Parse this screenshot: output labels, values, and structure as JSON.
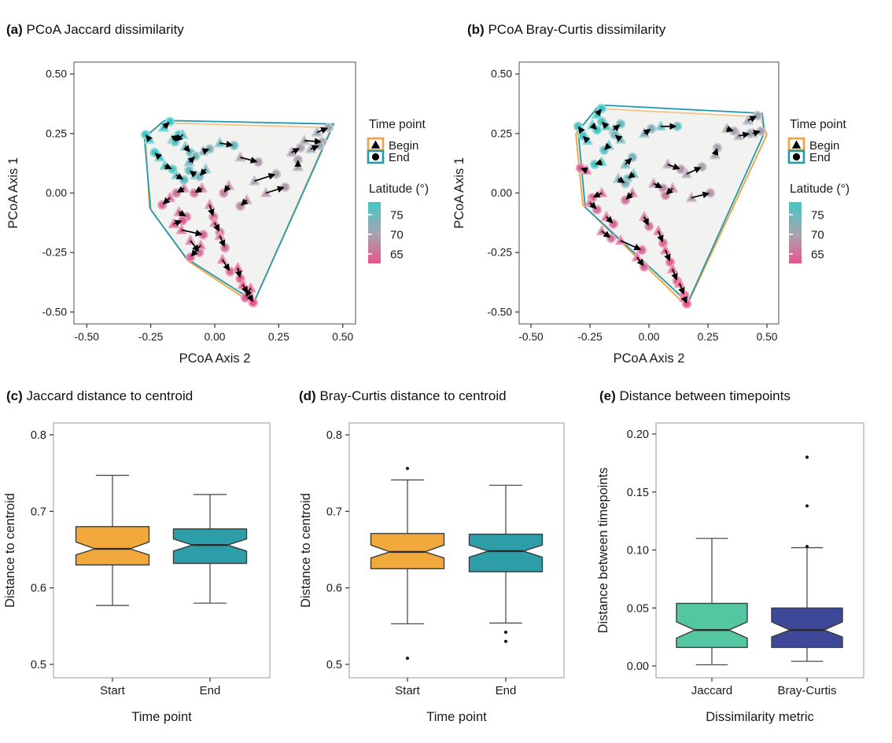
{
  "panels": {
    "a": {
      "tag": "(a)",
      "title": "PCoA Jaccard dissimilarity"
    },
    "b": {
      "tag": "(b)",
      "title": "PCoA Bray-Curtis dissimilarity"
    },
    "c": {
      "tag": "(c)",
      "title": "Jaccard distance to centroid"
    },
    "d": {
      "tag": "(d)",
      "title": "Bray-Curtis distance to centroid"
    },
    "e": {
      "tag": "(e)",
      "title": "Distance between timepoints"
    }
  },
  "legend": {
    "time_point_title": "Time point",
    "begin_label": "Begin",
    "end_label": "End",
    "latitude_title": "Latitude (°)",
    "latitude_ticks": [
      "75",
      "70",
      "65"
    ],
    "begin_color": "#F3A13C",
    "end_color": "#2399AC",
    "latitude_colors": [
      "#41C8C6",
      "#A9A2AF",
      "#E9548C"
    ]
  },
  "colors": {
    "box_start": "#F2A93C",
    "box_end": "#2D9EA8",
    "box_jaccard": "#55C6A2",
    "box_braycurtis": "#3D4899",
    "hull_fill": "#F0F2EF",
    "panel_border_scatter": "#808080",
    "panel_border_box": "#A9A9A9"
  },
  "chart_data": [
    {
      "id": "a",
      "type": "scatter",
      "title": "PCoA Jaccard dissimilarity",
      "xlabel": "PCoA Axis 2",
      "ylabel": "PCoA Axis 1",
      "xlim": [
        -0.55,
        0.55
      ],
      "ylim": [
        -0.55,
        0.55
      ],
      "x_tick_values": [
        -0.5,
        -0.25,
        0.0,
        0.25,
        0.5
      ],
      "x_tick_labels": [
        "-0.50",
        "-0.25",
        "0.00",
        "0.25",
        "0.50"
      ],
      "y_tick_values": [
        0.5,
        0.25,
        0.0,
        -0.25,
        -0.5
      ],
      "y_tick_labels": [
        "0.50",
        "0.25",
        "0.00",
        "-0.25",
        "-0.50"
      ],
      "hull_begin": [
        [
          -0.27,
          0.23
        ],
        [
          -0.21,
          0.295
        ],
        [
          0.455,
          0.275
        ],
        [
          0.15,
          -0.465
        ],
        [
          -0.105,
          -0.285
        ],
        [
          -0.255,
          -0.06
        ]
      ],
      "hull_end": [
        [
          -0.275,
          0.235
        ],
        [
          -0.195,
          0.305
        ],
        [
          0.465,
          0.29
        ],
        [
          0.155,
          -0.455
        ],
        [
          -0.11,
          -0.275
        ],
        [
          -0.25,
          -0.07
        ]
      ],
      "pairs": [
        [
          -0.2,
          0.275,
          -0.175,
          0.3,
          79
        ],
        [
          -0.255,
          0.225,
          -0.27,
          0.245,
          78
        ],
        [
          -0.165,
          0.225,
          -0.14,
          0.245,
          77
        ],
        [
          -0.125,
          0.245,
          -0.155,
          0.215,
          76
        ],
        [
          -0.115,
          0.195,
          -0.095,
          0.17,
          75
        ],
        [
          -0.215,
          0.15,
          -0.235,
          0.17,
          78
        ],
        [
          -0.195,
          0.115,
          -0.165,
          0.1,
          77
        ],
        [
          -0.1,
          0.13,
          -0.075,
          0.155,
          74
        ],
        [
          -0.045,
          0.175,
          -0.02,
          0.185,
          73
        ],
        [
          0.02,
          0.21,
          0.075,
          0.2,
          75
        ],
        [
          -0.15,
          0.075,
          -0.12,
          0.055,
          76
        ],
        [
          -0.075,
          0.075,
          -0.1,
          0.095,
          75
        ],
        [
          -0.035,
          0.1,
          -0.06,
          0.07,
          74
        ],
        [
          0.4,
          0.255,
          0.445,
          0.275,
          71
        ],
        [
          0.35,
          0.22,
          0.42,
          0.215,
          70
        ],
        [
          0.375,
          0.185,
          0.41,
          0.2,
          71
        ],
        [
          0.3,
          0.17,
          0.335,
          0.19,
          70
        ],
        [
          0.325,
          0.11,
          0.325,
          0.14,
          70
        ],
        [
          0.1,
          0.15,
          0.17,
          0.13,
          69
        ],
        [
          0.155,
          0.05,
          0.24,
          0.08,
          70
        ],
        [
          0.2,
          0.0,
          0.275,
          0.025,
          69
        ],
        [
          0.125,
          -0.03,
          0.1,
          -0.055,
          68
        ],
        [
          0.055,
          0.03,
          0.035,
          0.0,
          67
        ],
        [
          -0.12,
          0.02,
          -0.15,
          0.0,
          66
        ],
        [
          -0.175,
          -0.02,
          -0.205,
          -0.05,
          65
        ],
        [
          -0.14,
          -0.08,
          -0.11,
          -0.1,
          66
        ],
        [
          -0.16,
          -0.13,
          -0.125,
          -0.115,
          64
        ],
        [
          -0.13,
          -0.155,
          -0.045,
          -0.175,
          65
        ],
        [
          -0.095,
          -0.2,
          -0.06,
          -0.25,
          66
        ],
        [
          -0.055,
          -0.22,
          -0.095,
          -0.27,
          65
        ],
        [
          -0.02,
          -0.05,
          -0.005,
          -0.1,
          66
        ],
        [
          0.0,
          -0.125,
          0.02,
          -0.165,
          65
        ],
        [
          0.02,
          -0.18,
          0.04,
          -0.23,
          66
        ],
        [
          0.03,
          -0.28,
          0.06,
          -0.33,
          65
        ],
        [
          0.09,
          -0.315,
          0.1,
          -0.36,
          64
        ],
        [
          0.11,
          -0.385,
          0.13,
          -0.425,
          63
        ],
        [
          0.135,
          -0.43,
          0.15,
          -0.46,
          63
        ],
        [
          0.14,
          -0.4,
          0.12,
          -0.44,
          64
        ],
        [
          -0.05,
          0.02,
          -0.08,
          0.0,
          66
        ]
      ]
    },
    {
      "id": "b",
      "type": "scatter",
      "title": "PCoA Bray-Curtis dissimilarity",
      "xlabel": "PCoA Axis 2",
      "ylabel": "PCoA Axis 1",
      "xlim": [
        -0.55,
        0.55
      ],
      "ylim": [
        -0.55,
        0.55
      ],
      "x_tick_values": [
        -0.5,
        -0.25,
        0.0,
        0.25,
        0.5
      ],
      "x_tick_labels": [
        "-0.50",
        "-0.25",
        "0.00",
        "0.25",
        "0.50"
      ],
      "y_tick_values": [
        0.5,
        0.25,
        0.0,
        -0.25,
        -0.5
      ],
      "y_tick_labels": [
        "0.50",
        "0.25",
        "0.00",
        "-0.25",
        "-0.50"
      ],
      "hull_begin": [
        [
          -0.31,
          0.25
        ],
        [
          -0.22,
          0.355
        ],
        [
          0.47,
          0.32
        ],
        [
          0.5,
          0.245
        ],
        [
          0.16,
          -0.475
        ],
        [
          -0.28,
          -0.05
        ]
      ],
      "hull_end": [
        [
          -0.3,
          0.26
        ],
        [
          -0.21,
          0.37
        ],
        [
          0.48,
          0.335
        ],
        [
          0.49,
          0.255
        ],
        [
          0.165,
          -0.46
        ],
        [
          -0.27,
          -0.06
        ]
      ],
      "pairs": [
        [
          -0.22,
          0.33,
          -0.2,
          0.355,
          78
        ],
        [
          -0.285,
          0.26,
          -0.3,
          0.28,
          77
        ],
        [
          -0.24,
          0.285,
          -0.22,
          0.265,
          78
        ],
        [
          -0.18,
          0.28,
          -0.2,
          0.3,
          76
        ],
        [
          -0.15,
          0.265,
          -0.12,
          0.29,
          75
        ],
        [
          -0.26,
          0.22,
          -0.28,
          0.24,
          77
        ],
        [
          -0.17,
          0.2,
          -0.19,
          0.18,
          76
        ],
        [
          -0.12,
          0.225,
          -0.145,
          0.245,
          74
        ],
        [
          0.05,
          0.28,
          0.12,
          0.28,
          75
        ],
        [
          -0.02,
          0.25,
          0.01,
          0.27,
          73
        ],
        [
          -0.2,
          0.13,
          -0.23,
          0.12,
          77
        ],
        [
          -0.265,
          0.095,
          -0.29,
          0.105,
          64
        ],
        [
          -0.1,
          0.12,
          -0.07,
          0.15,
          74
        ],
        [
          -0.065,
          0.08,
          -0.09,
          0.06,
          75
        ],
        [
          -0.13,
          0.06,
          -0.1,
          0.04,
          73
        ],
        [
          0.42,
          0.305,
          0.46,
          0.325,
          71
        ],
        [
          0.44,
          0.25,
          0.475,
          0.26,
          70
        ],
        [
          0.38,
          0.24,
          0.43,
          0.25,
          71
        ],
        [
          0.33,
          0.27,
          0.36,
          0.26,
          70
        ],
        [
          0.28,
          0.16,
          0.29,
          0.19,
          70
        ],
        [
          0.08,
          0.12,
          0.135,
          0.1,
          69
        ],
        [
          0.16,
          0.08,
          0.225,
          0.11,
          70
        ],
        [
          0.02,
          0.04,
          0.06,
          0.02,
          68
        ],
        [
          0.18,
          -0.02,
          0.26,
          0.0,
          69
        ],
        [
          0.1,
          0.02,
          0.07,
          -0.01,
          67
        ],
        [
          -0.2,
          0.0,
          -0.24,
          -0.02,
          65
        ],
        [
          -0.25,
          -0.04,
          -0.22,
          -0.07,
          66
        ],
        [
          -0.18,
          -0.1,
          -0.15,
          -0.13,
          65
        ],
        [
          -0.2,
          -0.16,
          -0.16,
          -0.19,
          66
        ],
        [
          -0.12,
          -0.2,
          -0.03,
          -0.24,
          65
        ],
        [
          -0.05,
          -0.27,
          -0.02,
          -0.31,
          65
        ],
        [
          -0.02,
          -0.1,
          0.0,
          -0.14,
          66
        ],
        [
          0.04,
          -0.16,
          0.06,
          -0.21,
          65
        ],
        [
          0.07,
          -0.24,
          0.09,
          -0.29,
          64
        ],
        [
          0.1,
          -0.32,
          0.12,
          -0.37,
          64
        ],
        [
          0.13,
          -0.38,
          0.15,
          -0.43,
          63
        ],
        [
          0.15,
          -0.44,
          0.16,
          -0.465,
          63
        ],
        [
          -0.07,
          0.0,
          -0.1,
          -0.03,
          66
        ]
      ]
    },
    {
      "id": "c",
      "type": "bar",
      "box_type": "notched-boxplot",
      "title": "Jaccard distance to centroid",
      "xlabel": "Time point",
      "ylabel": "Distance to centroid",
      "ylim": [
        0.48,
        0.82
      ],
      "y_tick_values": [
        0.8,
        0.7,
        0.6,
        0.5
      ],
      "y_tick_labels": [
        "0.8",
        "0.7",
        "0.6",
        "0.5"
      ],
      "categories": [
        "Start",
        "End"
      ],
      "boxes": [
        {
          "label": "Start",
          "color_key": "box_start",
          "min": 0.577,
          "q1": 0.63,
          "median": 0.651,
          "q3": 0.68,
          "max": 0.747,
          "notch_lo": 0.643,
          "notch_hi": 0.66,
          "outliers": []
        },
        {
          "label": "End",
          "color_key": "box_end",
          "min": 0.58,
          "q1": 0.632,
          "median": 0.656,
          "q3": 0.677,
          "max": 0.722,
          "notch_lo": 0.648,
          "notch_hi": 0.664,
          "outliers": []
        }
      ]
    },
    {
      "id": "d",
      "type": "bar",
      "box_type": "notched-boxplot",
      "title": "Bray-Curtis distance to centroid",
      "xlabel": "Time point",
      "ylabel": "Distance to centroid",
      "ylim": [
        0.48,
        0.82
      ],
      "y_tick_values": [
        0.8,
        0.7,
        0.6,
        0.5
      ],
      "y_tick_labels": [
        "0.8",
        "0.7",
        "0.6",
        "0.5"
      ],
      "categories": [
        "Start",
        "End"
      ],
      "boxes": [
        {
          "label": "Start",
          "color_key": "box_start",
          "min": 0.553,
          "q1": 0.625,
          "median": 0.647,
          "q3": 0.671,
          "max": 0.741,
          "notch_lo": 0.639,
          "notch_hi": 0.656,
          "outliers": [
            0.756,
            0.508
          ]
        },
        {
          "label": "End",
          "color_key": "box_end",
          "min": 0.554,
          "q1": 0.621,
          "median": 0.648,
          "q3": 0.67,
          "max": 0.734,
          "notch_lo": 0.64,
          "notch_hi": 0.656,
          "outliers": [
            0.542,
            0.53
          ]
        }
      ]
    },
    {
      "id": "e",
      "type": "bar",
      "box_type": "notched-boxplot",
      "title": "Distance between timepoints",
      "xlabel": "Dissimilarity metric",
      "ylabel": "Distance between timepoints",
      "ylim": [
        -0.01,
        0.21
      ],
      "y_tick_values": [
        0.2,
        0.15,
        0.1,
        0.05,
        0.0
      ],
      "y_tick_labels": [
        "0.20",
        "0.15",
        "0.10",
        "0.05",
        "0.00"
      ],
      "categories": [
        "Jaccard",
        "Bray-Curtis"
      ],
      "boxes": [
        {
          "label": "Jaccard",
          "color_key": "box_jaccard",
          "min": 0.001,
          "q1": 0.016,
          "median": 0.031,
          "q3": 0.054,
          "max": 0.11,
          "notch_lo": 0.024,
          "notch_hi": 0.038,
          "outliers": []
        },
        {
          "label": "Bray-Curtis",
          "color_key": "box_braycurtis",
          "min": 0.004,
          "q1": 0.016,
          "median": 0.031,
          "q3": 0.05,
          "max": 0.102,
          "notch_lo": 0.025,
          "notch_hi": 0.038,
          "outliers": [
            0.103,
            0.138,
            0.18
          ]
        }
      ]
    }
  ]
}
